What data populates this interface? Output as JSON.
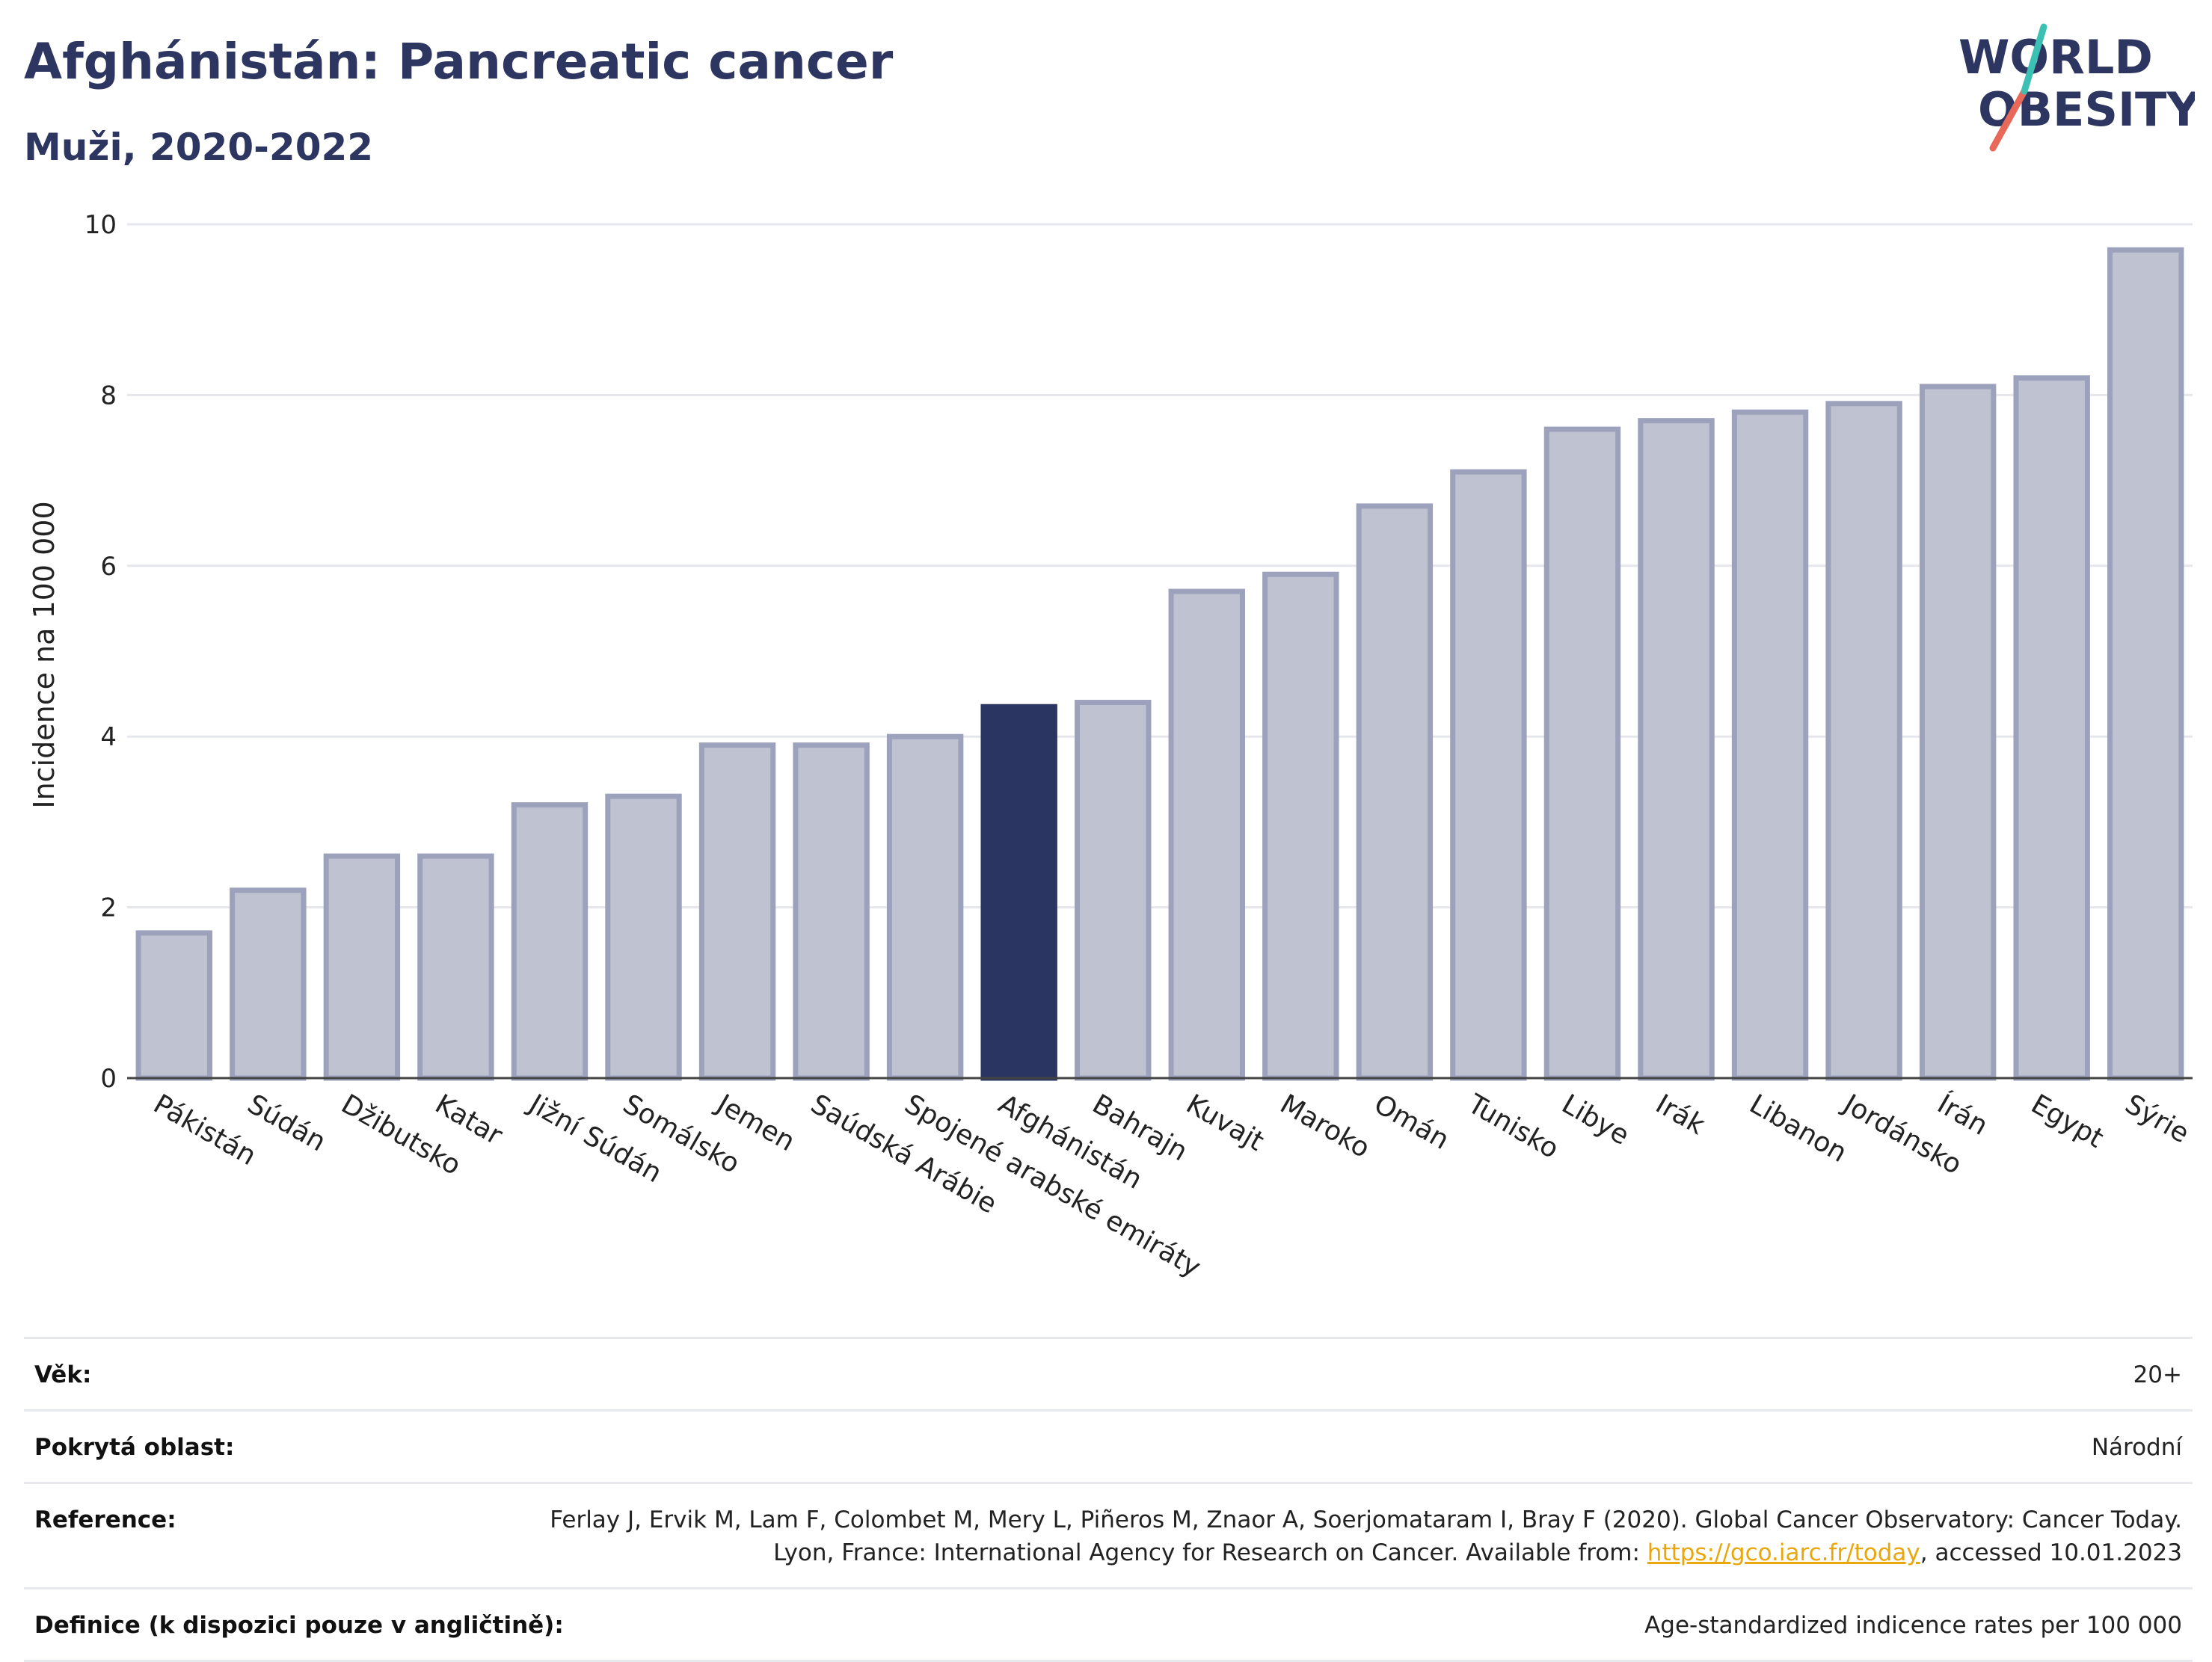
{
  "header": {
    "title": "Afghánistán: Pancreatic cancer",
    "subtitle": "Muži, 2020-2022"
  },
  "logo": {
    "line1": "WORLD",
    "line2": "OBESITY",
    "accent_teal": "#3cc0b4",
    "accent_red": "#e8685a",
    "text_color": "#2d3561"
  },
  "colors": {
    "bar_default": "#bfc2d0",
    "bar_border": "#9da2bc",
    "bar_highlight": "#2b3561",
    "grid": "#e6e7ec"
  },
  "chart_data": {
    "type": "bar",
    "title": "Afghánistán: Pancreatic cancer",
    "subtitle": "Muži, 2020-2022",
    "xlabel": "",
    "ylabel": "Incidence na 100 000",
    "ylim": [
      0,
      10
    ],
    "yticks": [
      0,
      2,
      4,
      6,
      8,
      10
    ],
    "grid": true,
    "highlight": "Afghánistán",
    "categories": [
      "Pákistán",
      "Súdán",
      "Džibutsko",
      "Katar",
      "Jižní Súdán",
      "Somálsko",
      "Jemen",
      "Saúdská Arábie",
      "Spojené arabské emiráty",
      "Afghánistán",
      "Bahrajn",
      "Kuvajt",
      "Maroko",
      "Omán",
      "Tunisko",
      "Libye",
      "Irák",
      "Libanon",
      "Jordánsko",
      "Írán",
      "Egypt",
      "Sýrie"
    ],
    "values": [
      1.7,
      2.2,
      2.6,
      2.6,
      3.2,
      3.3,
      3.9,
      3.9,
      4.0,
      4.35,
      4.4,
      5.7,
      5.9,
      6.7,
      7.1,
      7.6,
      7.7,
      7.8,
      7.9,
      8.1,
      8.2,
      9.7
    ]
  },
  "info": {
    "age": {
      "label": "Věk:",
      "value": "20+"
    },
    "coverage": {
      "label": "Pokrytá oblast:",
      "value": "Národní"
    },
    "reference": {
      "label": "Reference:",
      "text_before": "Ferlay J, Ervik M, Lam F, Colombet M, Mery L, Piñeros M, Znaor A, Soerjomataram I, Bray F (2020). Global Cancer Observatory: Cancer Today. Lyon, France: International Agency for Research on Cancer. Available from: ",
      "link_text": "https://gco.iarc.fr/today",
      "text_after": ", accessed 10.01.2023"
    },
    "definition": {
      "label": "Definice (k dispozici pouze v angličtině):",
      "value": "Age-standardized indicence rates per 100 000"
    }
  }
}
